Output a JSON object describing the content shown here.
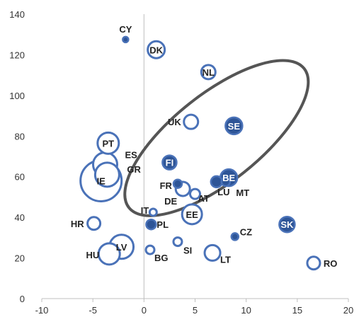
{
  "chart_data": {
    "type": "scatter",
    "subtype": "bubble",
    "title": "",
    "xlabel": "",
    "ylabel": "",
    "xlim": [
      -10,
      20
    ],
    "ylim": [
      0,
      140
    ],
    "xticks": [
      -10,
      -5,
      0,
      5,
      10,
      15,
      20
    ],
    "yticks": [
      0,
      20,
      40,
      60,
      80,
      100,
      120,
      140
    ],
    "grid": false,
    "legend": "none",
    "colors": {
      "stroke": "#4A72B8",
      "fill": "#2E5597",
      "label_dark": "#222222",
      "ellipse": "#555555",
      "axis": "#BFBFBF"
    },
    "points": [
      {
        "label": "CY",
        "x": -1.8,
        "y": 127.5,
        "size": 4,
        "filled": true,
        "label_pos": "above"
      },
      {
        "label": "DK",
        "x": 1.2,
        "y": 122.5,
        "size": 12,
        "filled": false,
        "label_pos": "center-dark"
      },
      {
        "label": "NL",
        "x": 6.3,
        "y": 111.5,
        "size": 10,
        "filled": false,
        "label_pos": "center-dark"
      },
      {
        "label": "UK",
        "x": 4.6,
        "y": 87,
        "size": 10,
        "filled": false,
        "label_pos": "left"
      },
      {
        "label": "SE",
        "x": 8.8,
        "y": 85,
        "size": 12,
        "filled": true,
        "label_pos": "center"
      },
      {
        "label": "PT",
        "x": -3.5,
        "y": 76.5,
        "size": 15,
        "filled": false,
        "label_pos": "center-dark"
      },
      {
        "label": "ES",
        "x": -3.8,
        "y": 66,
        "size": 17,
        "filled": false,
        "label_pos": "right-ES"
      },
      {
        "label": "GR",
        "x": -3.6,
        "y": 61,
        "size": 17,
        "filled": false,
        "label_pos": "right-GR"
      },
      {
        "label": "IE",
        "x": -4.2,
        "y": 58,
        "size": 29,
        "filled": false,
        "label_pos": "center-dark"
      },
      {
        "label": "FI",
        "x": 2.5,
        "y": 67,
        "size": 10,
        "filled": true,
        "label_pos": "center"
      },
      {
        "label": "BE",
        "x": 8.3,
        "y": 59.5,
        "size": 12,
        "filled": true,
        "label_pos": "center"
      },
      {
        "label": "LU",
        "x": 7.1,
        "y": 57.5,
        "size": 8,
        "filled": true,
        "label_pos": "below-LU"
      },
      {
        "label": "MT",
        "x": 8.0,
        "y": 57.5,
        "size": 6,
        "filled": true,
        "label_pos": "below-MT"
      },
      {
        "label": "FR",
        "x": 3.3,
        "y": 56.5,
        "size": 6,
        "filled": true,
        "label_pos": "left-FR"
      },
      {
        "label": "DE",
        "x": 3.8,
        "y": 54,
        "size": 10,
        "filled": false,
        "label_pos": "below-DE"
      },
      {
        "label": "AT",
        "x": 5.0,
        "y": 51.5,
        "size": 7,
        "filled": false,
        "label_pos": "right-AT"
      },
      {
        "label": "EE",
        "x": 4.7,
        "y": 41.5,
        "size": 14,
        "filled": false,
        "label_pos": "center-dark"
      },
      {
        "label": "IT",
        "x": 0.9,
        "y": 42.5,
        "size": 5,
        "filled": false,
        "label_pos": "left-IT"
      },
      {
        "label": "PL",
        "x": 0.7,
        "y": 36.5,
        "size": 7,
        "filled": true,
        "label_pos": "right-PL"
      },
      {
        "label": "HR",
        "x": -4.9,
        "y": 37,
        "size": 9,
        "filled": false,
        "label_pos": "left"
      },
      {
        "label": "CZ",
        "x": 8.9,
        "y": 30.5,
        "size": 5,
        "filled": true,
        "label_pos": "right-CZ"
      },
      {
        "label": "SK",
        "x": 14.0,
        "y": 36.5,
        "size": 11,
        "filled": true,
        "label_pos": "center"
      },
      {
        "label": "SI",
        "x": 3.3,
        "y": 28.0,
        "size": 6,
        "filled": false,
        "label_pos": "below-SI"
      },
      {
        "label": "LV",
        "x": -2.2,
        "y": 25.5,
        "size": 17,
        "filled": false,
        "label_pos": "center-dark"
      },
      {
        "label": "HU",
        "x": -3.4,
        "y": 22.0,
        "size": 15,
        "filled": false,
        "label_pos": "left-HU"
      },
      {
        "label": "BG",
        "x": 0.6,
        "y": 24.0,
        "size": 6,
        "filled": false,
        "label_pos": "below-BG"
      },
      {
        "label": "LT",
        "x": 6.7,
        "y": 22.5,
        "size": 11,
        "filled": false,
        "label_pos": "below-LT"
      },
      {
        "label": "RO",
        "x": 16.6,
        "y": 17.5,
        "size": 9,
        "filled": false,
        "label_pos": "right"
      }
    ],
    "ellipse": {
      "center": [
        7.1,
        79
      ],
      "angle_deg": -38.5,
      "rx_data_x": 10.2,
      "ry_data_y": 34
    }
  }
}
